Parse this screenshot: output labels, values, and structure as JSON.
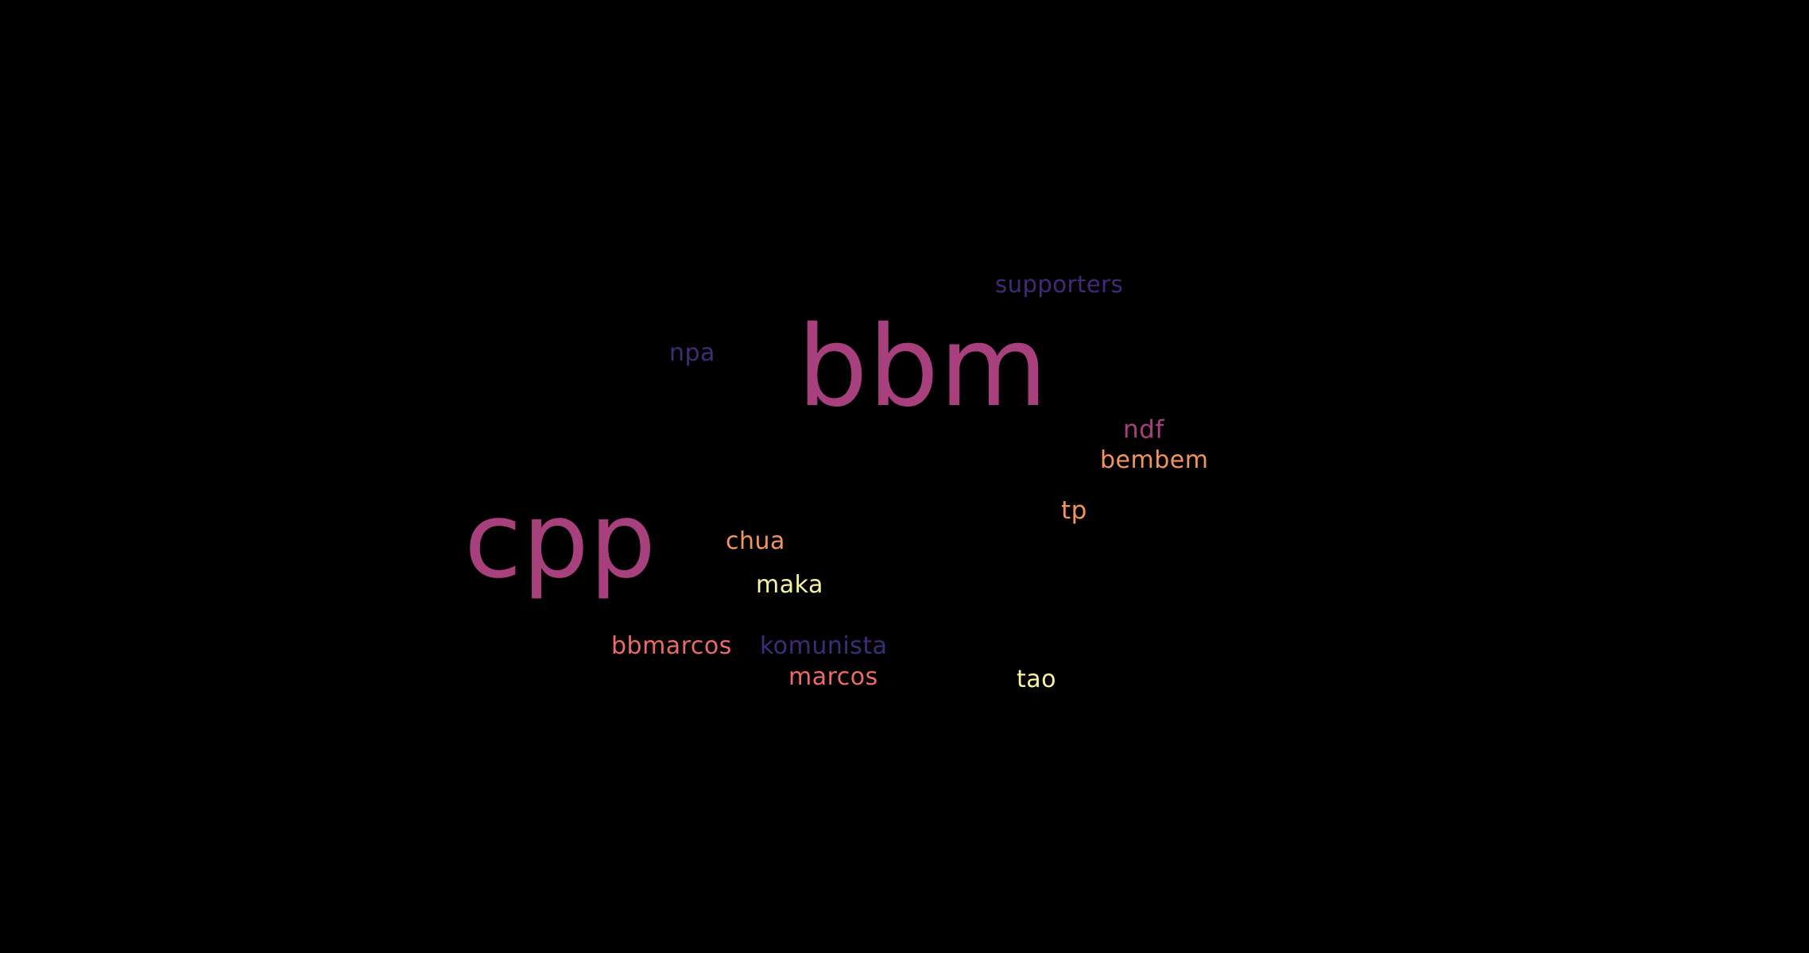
{
  "background_color": "#000000",
  "words": {
    "bbm": {
      "text": "bbm",
      "color": "#A8407E"
    },
    "cpp": {
      "text": "cpp",
      "color": "#A8407E"
    },
    "supporters": {
      "text": "supporters",
      "color": "#3F2C79"
    },
    "npa": {
      "text": "npa",
      "color": "#3F2C79"
    },
    "ndf": {
      "text": "ndf",
      "color": "#A8407E"
    },
    "bembem": {
      "text": "bembem",
      "color": "#F2945F"
    },
    "tp": {
      "text": "tp",
      "color": "#F2945F"
    },
    "chua": {
      "text": "chua",
      "color": "#F2945F"
    },
    "maka": {
      "text": "maka",
      "color": "#F8F4A0"
    },
    "bbmarcos": {
      "text": "bbmarcos",
      "color": "#EC6B68"
    },
    "komunista": {
      "text": "komunista",
      "color": "#3F2C79"
    },
    "marcos": {
      "text": "marcos",
      "color": "#EC6B68"
    },
    "tao": {
      "text": "tao",
      "color": "#F8F4A0"
    }
  }
}
